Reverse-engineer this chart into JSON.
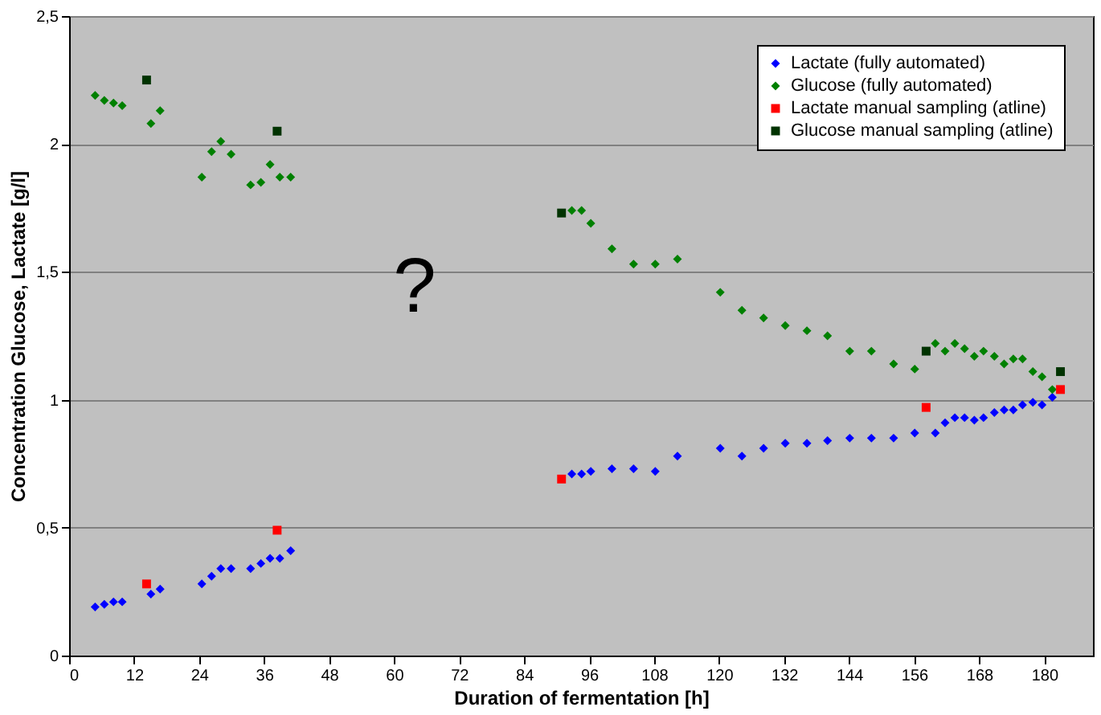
{
  "chart_data": {
    "type": "scatter",
    "xlabel": "Duration of fermentation [h]",
    "ylabel": "Concentration Glucose, Lactate [g/l]",
    "xlim": [
      0,
      189
    ],
    "xticks": [
      0,
      12,
      24,
      36,
      48,
      60,
      72,
      84,
      96,
      108,
      120,
      132,
      144,
      156,
      168,
      180
    ],
    "ylim": [
      0,
      2.5
    ],
    "yticks": [
      0,
      {
        "value": 0.5,
        "label": "0,5"
      },
      1,
      {
        "value": 1.5,
        "label": "1,5"
      },
      2,
      {
        "value": 2.5,
        "label": "2,5"
      }
    ],
    "grid": "y",
    "legend": "top right",
    "annotations": [
      "?"
    ],
    "series": [
      {
        "name": "Lactate (fully automated)",
        "color": "#0000ff",
        "marker": "diamond",
        "x": [
          4.8,
          6.5,
          8.2,
          9.8,
          15.1,
          16.8,
          24.5,
          26.3,
          28.0,
          29.9,
          33.5,
          35.4,
          37.1,
          38.9,
          40.9,
          92.8,
          94.6,
          96.3,
          100.2,
          104.2,
          108.2,
          112.3,
          120.2,
          124.2,
          128.2,
          132.2,
          136.2,
          140.0,
          144.1,
          148.1,
          152.2,
          156.1,
          159.9,
          161.7,
          163.5,
          165.3,
          167.1,
          168.8,
          170.8,
          172.6,
          174.3,
          176.0,
          177.9,
          179.6,
          181.5
        ],
        "values": [
          0.19,
          0.2,
          0.21,
          0.21,
          0.24,
          0.26,
          0.28,
          0.31,
          0.34,
          0.34,
          0.34,
          0.36,
          0.38,
          0.38,
          0.41,
          0.71,
          0.71,
          0.72,
          0.73,
          0.73,
          0.72,
          0.78,
          0.81,
          0.78,
          0.81,
          0.83,
          0.83,
          0.84,
          0.85,
          0.85,
          0.85,
          0.87,
          0.87,
          0.91,
          0.93,
          0.93,
          0.92,
          0.93,
          0.95,
          0.96,
          0.96,
          0.98,
          0.99,
          0.98,
          1.01
        ]
      },
      {
        "name": "Glucose (fully automated)",
        "color": "#008000",
        "marker": "diamond",
        "x": [
          4.8,
          6.5,
          8.2,
          9.8,
          15.1,
          16.8,
          24.5,
          26.3,
          28.0,
          29.9,
          33.5,
          35.4,
          37.1,
          38.9,
          40.9,
          92.8,
          94.6,
          96.3,
          100.2,
          104.2,
          108.2,
          112.3,
          120.2,
          124.2,
          128.2,
          132.2,
          136.2,
          140.0,
          144.1,
          148.1,
          152.2,
          156.1,
          159.9,
          161.7,
          163.5,
          165.3,
          167.1,
          168.8,
          170.8,
          172.6,
          174.3,
          176.0,
          177.9,
          179.6,
          181.5
        ],
        "values": [
          2.19,
          2.17,
          2.16,
          2.15,
          2.08,
          2.13,
          1.87,
          1.97,
          2.01,
          1.96,
          1.84,
          1.85,
          1.92,
          1.87,
          1.87,
          1.74,
          1.74,
          1.69,
          1.59,
          1.53,
          1.53,
          1.55,
          1.42,
          1.35,
          1.32,
          1.29,
          1.27,
          1.25,
          1.19,
          1.19,
          1.14,
          1.12,
          1.22,
          1.19,
          1.22,
          1.2,
          1.17,
          1.19,
          1.17,
          1.14,
          1.16,
          1.16,
          1.11,
          1.09,
          1.04
        ]
      },
      {
        "name": "Lactate manual sampling (atline)",
        "color": "#ff0000",
        "marker": "square",
        "x": [
          14.3,
          38.4,
          90.9,
          158.2,
          183.0
        ],
        "values": [
          0.28,
          0.49,
          0.69,
          0.97,
          1.04
        ]
      },
      {
        "name": "Glucose manual sampling (atline)",
        "color": "#003300",
        "marker": "square",
        "x": [
          14.3,
          38.4,
          90.9,
          158.2,
          183.0
        ],
        "values": [
          2.25,
          2.05,
          1.73,
          1.19,
          1.11
        ]
      }
    ]
  }
}
